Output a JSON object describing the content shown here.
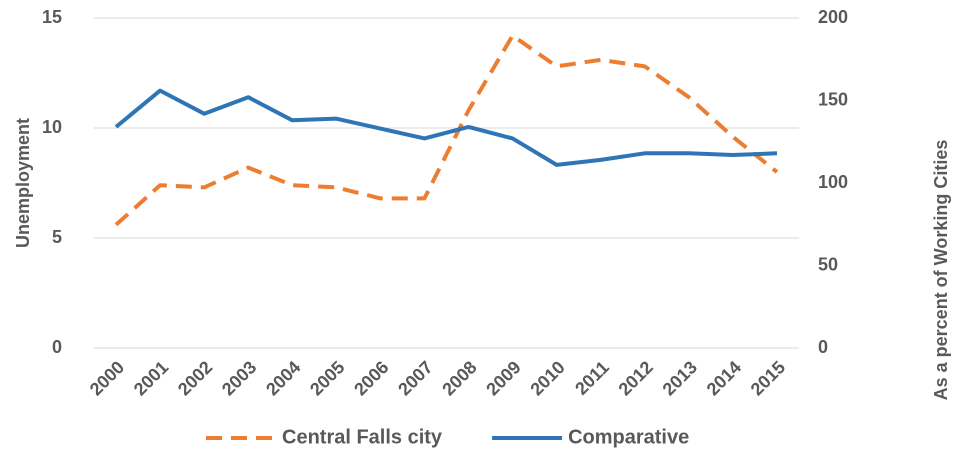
{
  "chart_data": {
    "type": "line",
    "y_label": "Unemployment",
    "y2_label": "As a percent of Working Cities",
    "categories": [
      "2000",
      "2001",
      "2002",
      "2003",
      "2004",
      "2005",
      "2006",
      "2007",
      "2008",
      "2009",
      "2010",
      "2011",
      "2012",
      "2013",
      "2014",
      "2015"
    ],
    "series": [
      {
        "name": "Central Falls city",
        "color": "#ed7d31",
        "dashed": true,
        "values": [
          5.6,
          7.4,
          7.3,
          8.2,
          7.4,
          7.3,
          6.8,
          6.8,
          10.8,
          14.2,
          12.8,
          13.1,
          12.8,
          11.4,
          9.6,
          8.0
        ]
      },
      {
        "name": "Comparative",
        "color": "#2e75b6",
        "axis": "y2",
        "values": [
          134,
          156,
          142,
          152,
          138,
          139,
          133,
          127,
          134,
          127,
          111,
          114,
          118,
          118,
          117,
          118
        ]
      }
    ],
    "ylim": [
      0,
      15
    ],
    "yticks": [
      0,
      5,
      10,
      15
    ],
    "y2lim": [
      0,
      200
    ],
    "y2ticks": [
      0,
      50,
      100,
      150,
      200
    ],
    "grid": true,
    "legend": "bottom"
  }
}
